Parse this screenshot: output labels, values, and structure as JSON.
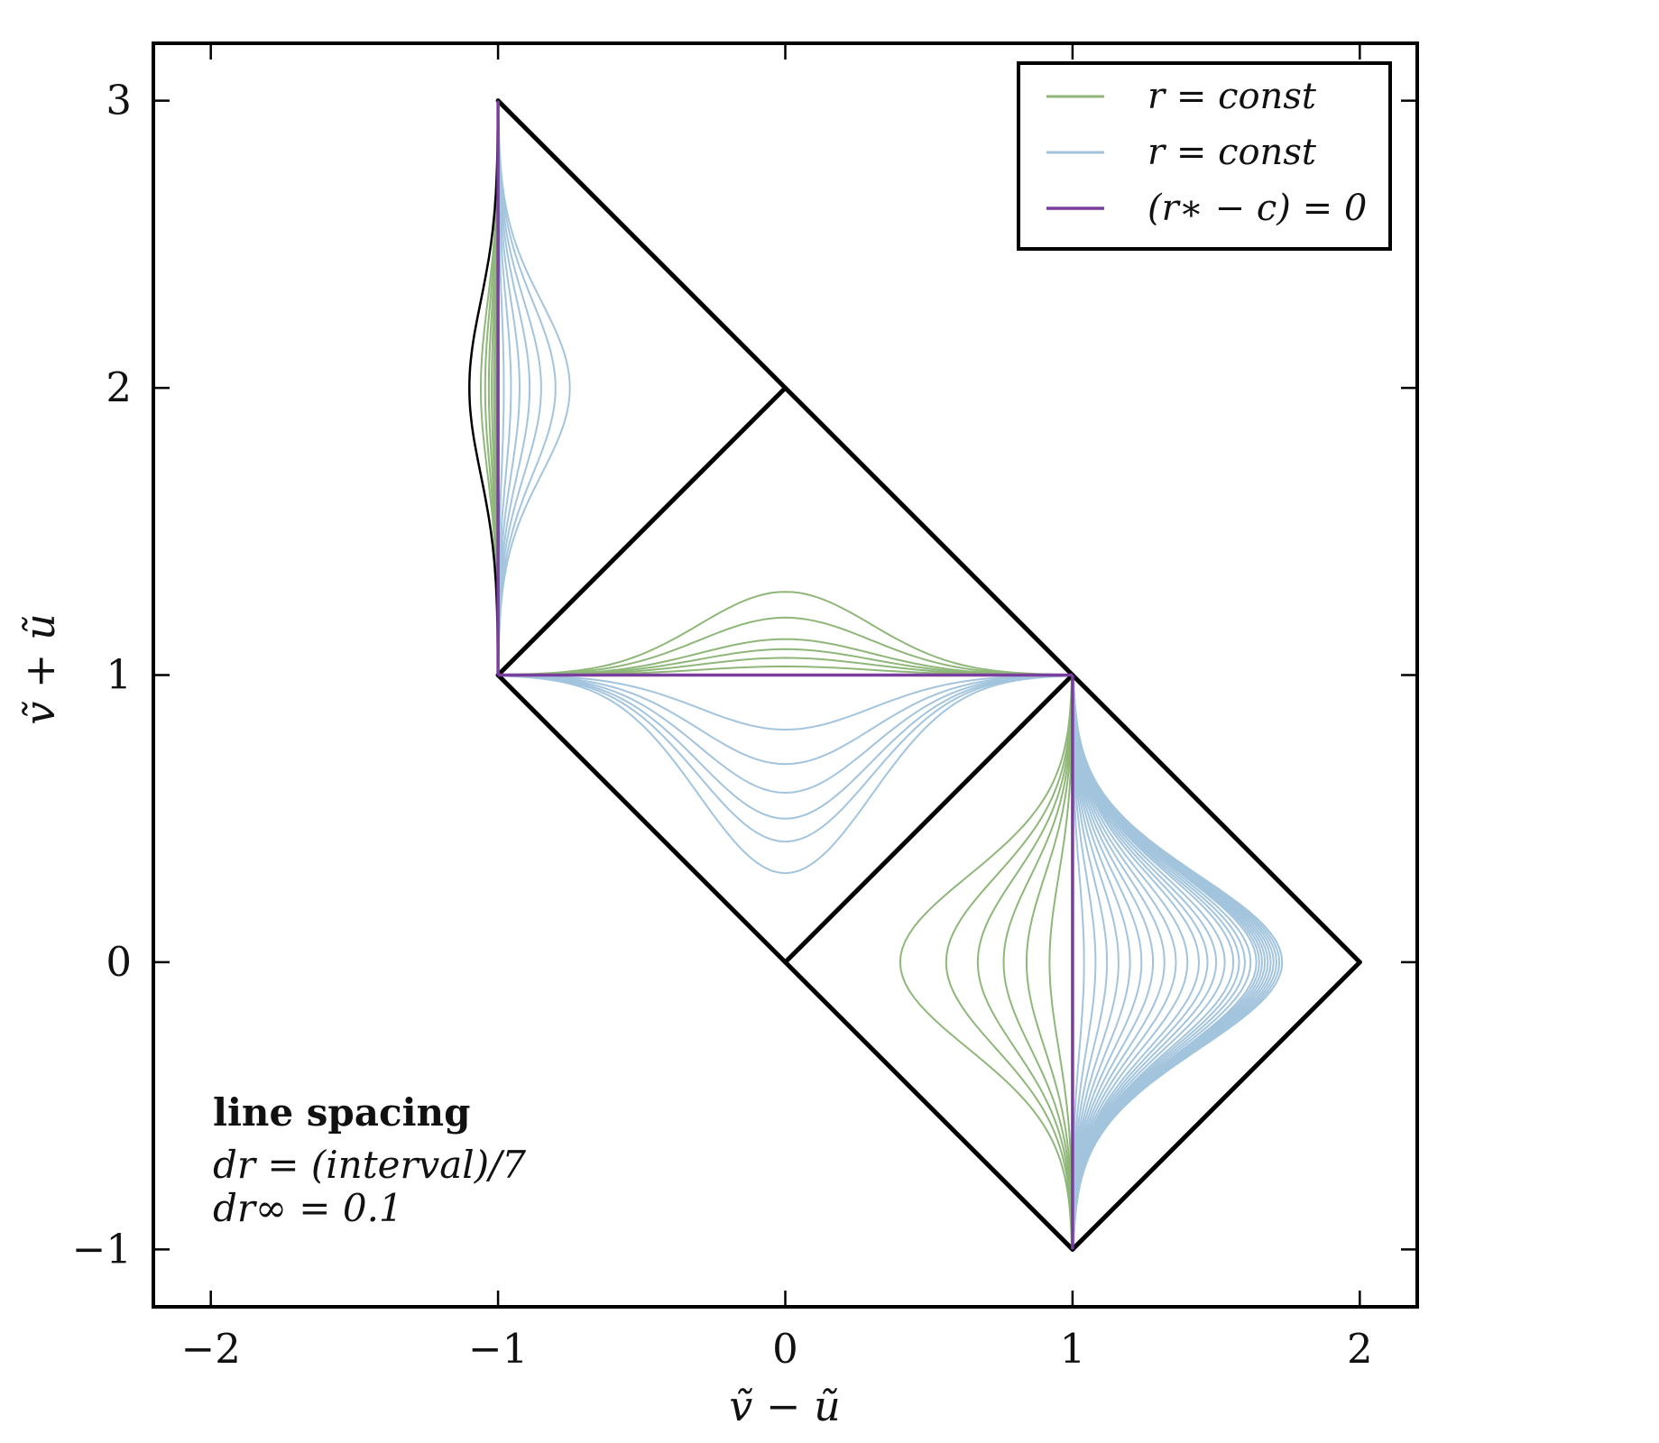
{
  "chart_data": {
    "type": "line",
    "title": "",
    "xlabel": "ṽ − ũ",
    "ylabel": "ṽ + ũ",
    "xlim": [
      -2.2,
      2.2
    ],
    "ylim": [
      -1.2,
      3.2
    ],
    "xticks": [
      {
        "value": -2,
        "label": "−2"
      },
      {
        "value": -1,
        "label": "−1"
      },
      {
        "value": 0,
        "label": "0"
      },
      {
        "value": 1,
        "label": "1"
      },
      {
        "value": 2,
        "label": "2"
      }
    ],
    "yticks": [
      {
        "value": -1,
        "label": "−1"
      },
      {
        "value": 0,
        "label": "0"
      },
      {
        "value": 1,
        "label": "1"
      },
      {
        "value": 2,
        "label": "2"
      },
      {
        "value": 3,
        "label": "3"
      }
    ],
    "grid": false,
    "legend_position": "top-right",
    "colors": {
      "green": "#8fb779",
      "blue": "#a3c4dd",
      "purple": "#7a3f9e",
      "boundary": "#000000"
    },
    "series": [
      {
        "name": "r = const",
        "color": "#8fb779"
      },
      {
        "name": "r = const",
        "color": "#a3c4dd"
      },
      {
        "name": "(r∗ − c) = 0",
        "color": "#7a3f9e"
      }
    ],
    "boundary_segments": [
      [
        [
          -1,
          3
        ],
        [
          0,
          2
        ]
      ],
      [
        [
          0,
          2
        ],
        [
          1,
          1
        ]
      ],
      [
        [
          1,
          1
        ],
        [
          2,
          0
        ]
      ],
      [
        [
          2,
          0
        ],
        [
          1,
          -1
        ]
      ],
      [
        [
          1,
          -1
        ],
        [
          0,
          0
        ]
      ],
      [
        [
          0,
          0
        ],
        [
          -1,
          1
        ]
      ],
      [
        [
          -1,
          1
        ],
        [
          0,
          2
        ]
      ],
      [
        [
          0,
          0
        ],
        [
          1,
          1
        ]
      ]
    ],
    "families": [
      {
        "region": "top-left",
        "style": "green",
        "orient": "vertical",
        "center": [
          -1,
          2
        ],
        "half_span": 1,
        "amplitudes": [
          -0.06,
          -0.045,
          -0.032,
          -0.022,
          -0.014,
          -0.008,
          -0.003
        ]
      },
      {
        "region": "top-left",
        "style": "blue",
        "orient": "vertical",
        "center": [
          -1,
          2
        ],
        "half_span": 1,
        "amplitudes": [
          0.02,
          0.045,
          0.075,
          0.11,
          0.15,
          0.2,
          0.25
        ]
      },
      {
        "region": "middle",
        "style": "green",
        "orient": "horizontal",
        "center": [
          0,
          1
        ],
        "half_span": 1,
        "amplitudes": [
          0.03,
          0.06,
          0.09,
          0.125,
          0.2,
          0.29
        ]
      },
      {
        "region": "middle",
        "style": "blue",
        "orient": "horizontal",
        "center": [
          0,
          1
        ],
        "half_span": 1,
        "amplitudes": [
          -0.19,
          -0.31,
          -0.41,
          -0.5,
          -0.58,
          -0.69
        ]
      },
      {
        "region": "bottom-right",
        "style": "green",
        "orient": "vertical",
        "center": [
          1,
          0
        ],
        "half_span": 1,
        "amplitudes": [
          -0.08,
          -0.16,
          -0.24,
          -0.33,
          -0.44,
          -0.6
        ]
      },
      {
        "region": "bottom-right",
        "style": "blue",
        "orient": "vertical",
        "center": [
          1,
          0
        ],
        "half_span": 1,
        "amplitudes": [
          0.04,
          0.08,
          0.12,
          0.16,
          0.2,
          0.24,
          0.28,
          0.32,
          0.36,
          0.4,
          0.44,
          0.47,
          0.5,
          0.53,
          0.56,
          0.58,
          0.6,
          0.62,
          0.64,
          0.65,
          0.66,
          0.67,
          0.68,
          0.69,
          0.7,
          0.71,
          0.72,
          0.73
        ]
      }
    ],
    "outer_curve": {
      "center": [
        -1,
        2
      ],
      "half_span": 1,
      "amplitude": -0.1
    },
    "purple_lines": [
      [
        [
          -1,
          1
        ],
        [
          -1,
          3
        ]
      ],
      [
        [
          -1,
          1
        ],
        [
          1,
          1
        ]
      ],
      [
        [
          1,
          -1
        ],
        [
          1,
          1
        ]
      ]
    ],
    "annotation": {
      "title": "line spacing",
      "line1": "dr = (interval)/7",
      "line2": "dr∞ = 0.1"
    }
  }
}
